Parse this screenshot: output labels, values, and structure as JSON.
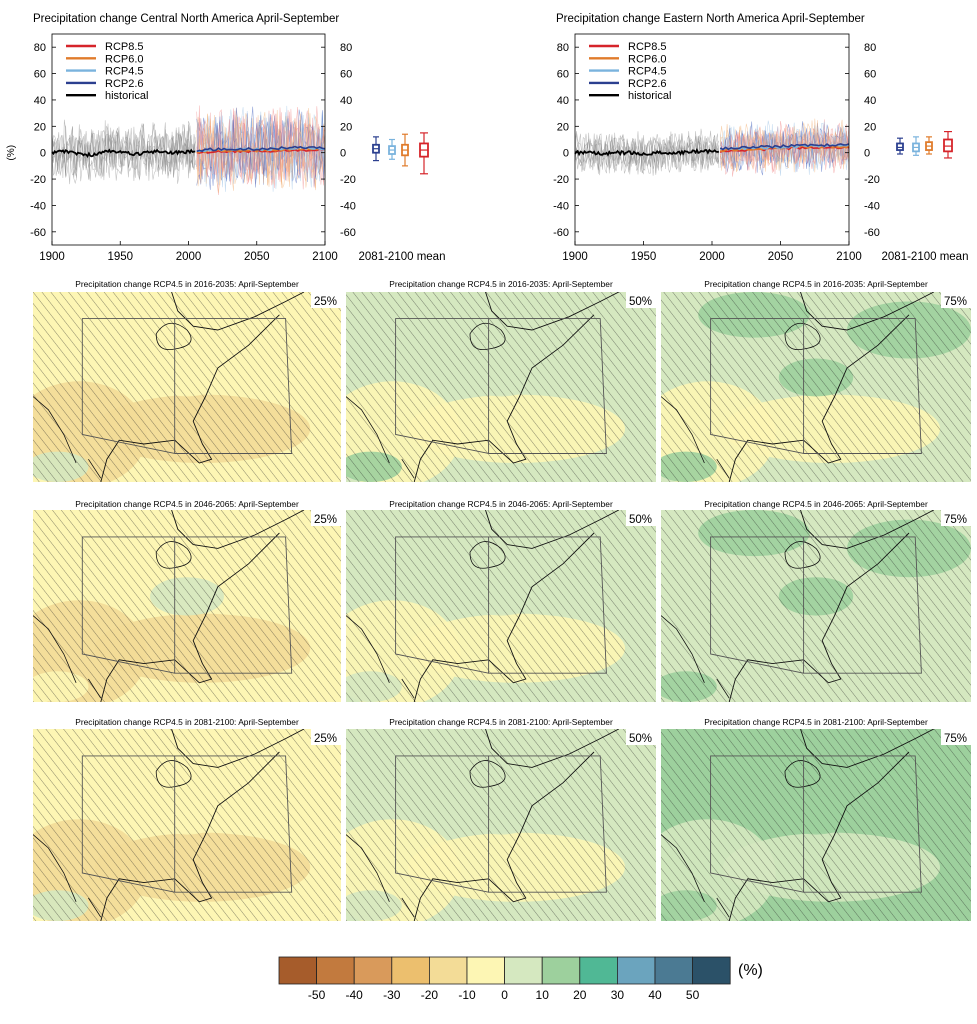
{
  "chart_data": {
    "type": "figure-panel",
    "timeseries": [
      {
        "type": "line",
        "title": "Precipitation change Central North America April-September",
        "ylabel": "(%)",
        "xlim": [
          1900,
          2100
        ],
        "ylim": [
          -70,
          90
        ],
        "xticks": [
          1900,
          1950,
          2000,
          2050,
          2100
        ],
        "yticks": [
          -60,
          -40,
          -20,
          0,
          20,
          40,
          60,
          80
        ],
        "legend": {
          "position": "top-left",
          "entries": [
            {
              "label": "RCP8.5",
              "color": "#d6242a"
            },
            {
              "label": "RCP6.0",
              "color": "#e07b2b"
            },
            {
              "label": "RCP4.5",
              "color": "#7ab3dd"
            },
            {
              "label": "RCP2.6",
              "color": "#2b3f8f"
            },
            {
              "label": "historical",
              "color": "#000000"
            }
          ]
        },
        "historical_mean": [
          [
            1900,
            0
          ],
          [
            1910,
            1
          ],
          [
            1920,
            -1
          ],
          [
            1930,
            -2
          ],
          [
            1940,
            1
          ],
          [
            1950,
            0
          ],
          [
            1960,
            -1
          ],
          [
            1970,
            0
          ],
          [
            1980,
            1
          ],
          [
            1990,
            0
          ],
          [
            2005,
            1
          ]
        ],
        "historical_spread": 25,
        "scenario_mean": [
          [
            2006,
            1
          ],
          [
            2025,
            2
          ],
          [
            2050,
            2
          ],
          [
            2075,
            3
          ],
          [
            2100,
            3
          ]
        ],
        "scenario_spread": 35,
        "boxplots": {
          "label": "2081-2100 mean",
          "boxes": [
            {
              "scenario": "RCP2.6",
              "color": "#2b3f8f",
              "min": -6,
              "q1": 0,
              "median": 3,
              "q3": 6,
              "max": 12
            },
            {
              "scenario": "RCP4.5",
              "color": "#7ab3dd",
              "min": -5,
              "q1": -1,
              "median": 2,
              "q3": 5,
              "max": 10
            },
            {
              "scenario": "RCP6.0",
              "color": "#e07b2b",
              "min": -10,
              "q1": -2,
              "median": 2,
              "q3": 6,
              "max": 14
            },
            {
              "scenario": "RCP8.5",
              "color": "#d6242a",
              "min": -16,
              "q1": -3,
              "median": 2,
              "q3": 7,
              "max": 15
            }
          ]
        }
      },
      {
        "type": "line",
        "title": "Precipitation change Eastern North America April-September",
        "ylabel": "",
        "xlim": [
          1900,
          2100
        ],
        "ylim": [
          -70,
          90
        ],
        "xticks": [
          1900,
          1950,
          2000,
          2050,
          2100
        ],
        "yticks": [
          -60,
          -40,
          -20,
          0,
          20,
          40,
          60,
          80
        ],
        "legend": {
          "position": "top-left",
          "entries": [
            {
              "label": "RCP8.5",
              "color": "#d6242a"
            },
            {
              "label": "RCP6.0",
              "color": "#e07b2b"
            },
            {
              "label": "RCP4.5",
              "color": "#7ab3dd"
            },
            {
              "label": "RCP2.6",
              "color": "#2b3f8f"
            },
            {
              "label": "historical",
              "color": "#000000"
            }
          ]
        },
        "historical_mean": [
          [
            1900,
            0
          ],
          [
            1910,
            0
          ],
          [
            1920,
            -1
          ],
          [
            1930,
            0
          ],
          [
            1940,
            0
          ],
          [
            1950,
            -1
          ],
          [
            1960,
            0
          ],
          [
            1970,
            0
          ],
          [
            1980,
            0
          ],
          [
            1990,
            1
          ],
          [
            2005,
            1
          ]
        ],
        "historical_spread": 18,
        "scenario_mean": [
          [
            2006,
            2
          ],
          [
            2025,
            3
          ],
          [
            2050,
            4
          ],
          [
            2075,
            5
          ],
          [
            2100,
            5
          ]
        ],
        "scenario_spread": 22,
        "boxplots": {
          "label": "2081-2100 mean",
          "boxes": [
            {
              "scenario": "RCP2.6",
              "color": "#2b3f8f",
              "min": -1,
              "q1": 2,
              "median": 4,
              "q3": 7,
              "max": 11
            },
            {
              "scenario": "RCP4.5",
              "color": "#7ab3dd",
              "min": -2,
              "q1": 1,
              "median": 4,
              "q3": 7,
              "max": 12
            },
            {
              "scenario": "RCP6.0",
              "color": "#e07b2b",
              "min": -1,
              "q1": 2,
              "median": 5,
              "q3": 8,
              "max": 12
            },
            {
              "scenario": "RCP8.5",
              "color": "#d6242a",
              "min": -4,
              "q1": 1,
              "median": 5,
              "q3": 10,
              "max": 16
            }
          ]
        }
      }
    ],
    "maps": [
      {
        "title": "Precipitation change RCP4.5 in 2016-2035: April-September",
        "percentile": "25%",
        "mean_change": -6
      },
      {
        "title": "Precipitation change RCP4.5 in 2016-2035: April-September",
        "percentile": "50%",
        "mean_change": 1
      },
      {
        "title": "Precipitation change RCP4.5 in 2016-2035: April-September",
        "percentile": "75%",
        "mean_change": 6
      },
      {
        "title": "Precipitation change RCP4.5 in 2046-2065: April-September",
        "percentile": "25%",
        "mean_change": -7
      },
      {
        "title": "Precipitation change RCP4.5 in 2046-2065: April-September",
        "percentile": "50%",
        "mean_change": 1
      },
      {
        "title": "Precipitation change RCP4.5 in 2046-2065: April-September",
        "percentile": "75%",
        "mean_change": 8
      },
      {
        "title": "Precipitation change RCP4.5 in 2081-2100: April-September",
        "percentile": "25%",
        "mean_change": -8
      },
      {
        "title": "Precipitation change RCP4.5 in 2081-2100: April-September",
        "percentile": "50%",
        "mean_change": 2
      },
      {
        "title": "Precipitation change RCP4.5 in 2081-2100: April-September",
        "percentile": "75%",
        "mean_change": 10
      }
    ],
    "colorbar": {
      "unit": "(%)",
      "ticks": [
        "-50",
        "-40",
        "-30",
        "-20",
        "-10",
        "0",
        "10",
        "20",
        "30",
        "40",
        "50"
      ],
      "colors": [
        "#a65c2b",
        "#c27a3e",
        "#d99a5b",
        "#ecbf6e",
        "#f3dc97",
        "#fdf6b4",
        "#d5e8c0",
        "#9dd09d",
        "#50b895",
        "#6ba4be",
        "#4b7a93",
        "#2b5168"
      ]
    }
  }
}
